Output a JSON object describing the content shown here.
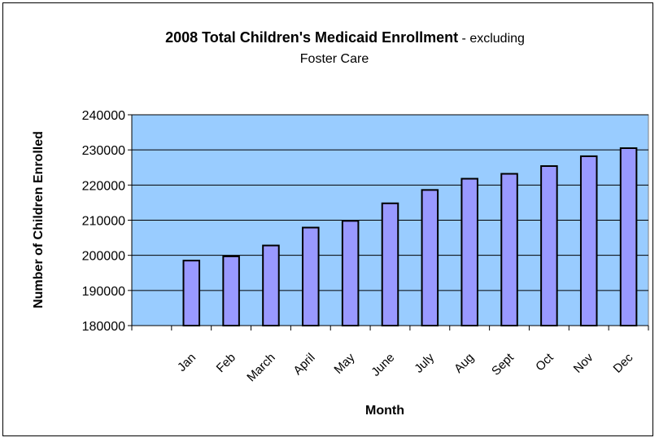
{
  "chart_data": {
    "type": "bar",
    "title": "2008 Total Children's Medicaid Enrollment",
    "title_suffix": " - excluding",
    "title_line2": "Foster Care",
    "xlabel": "Month",
    "ylabel": "Number of Children Enrolled",
    "ylim": [
      180000,
      240000
    ],
    "yticks": [
      "180000",
      "190000",
      "200000",
      "210000",
      "220000",
      "230000",
      "240000"
    ],
    "categories": [
      "Jan",
      "Feb",
      "March",
      "April",
      "May",
      "June",
      "July",
      "Aug",
      "Sept",
      "Oct",
      "Nov",
      "Dec"
    ],
    "values": [
      198500,
      199700,
      202800,
      207900,
      209800,
      214800,
      218600,
      221800,
      223200,
      225400,
      228200,
      230500
    ],
    "grid": true,
    "legend": "none",
    "colors": {
      "plot_bg": "#99ccff",
      "bar_fill": "#9999ff",
      "bar_stroke": "#000000",
      "grid": "#000000"
    }
  }
}
